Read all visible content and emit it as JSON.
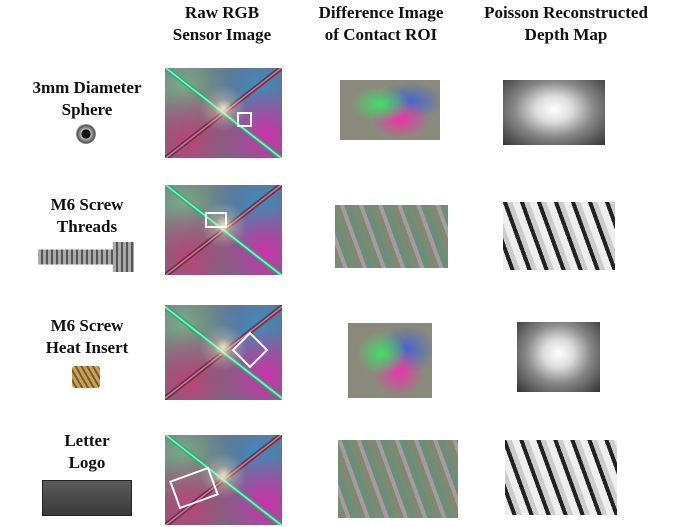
{
  "columns": [
    {
      "lines": [
        "Raw RGB",
        "Sensor Image"
      ]
    },
    {
      "lines": [
        "Difference Image",
        "of Contact ROI"
      ]
    },
    {
      "lines": [
        "Poisson Reconstructed",
        "Depth Map"
      ]
    }
  ],
  "rows": [
    {
      "lines": [
        "3mm Diameter",
        "Sphere"
      ]
    },
    {
      "lines": [
        "M6 Screw",
        "Threads"
      ]
    },
    {
      "lines": [
        "M6 Screw",
        "Heat Insert"
      ]
    },
    {
      "lines": [
        "Letter",
        "Logo"
      ]
    }
  ]
}
